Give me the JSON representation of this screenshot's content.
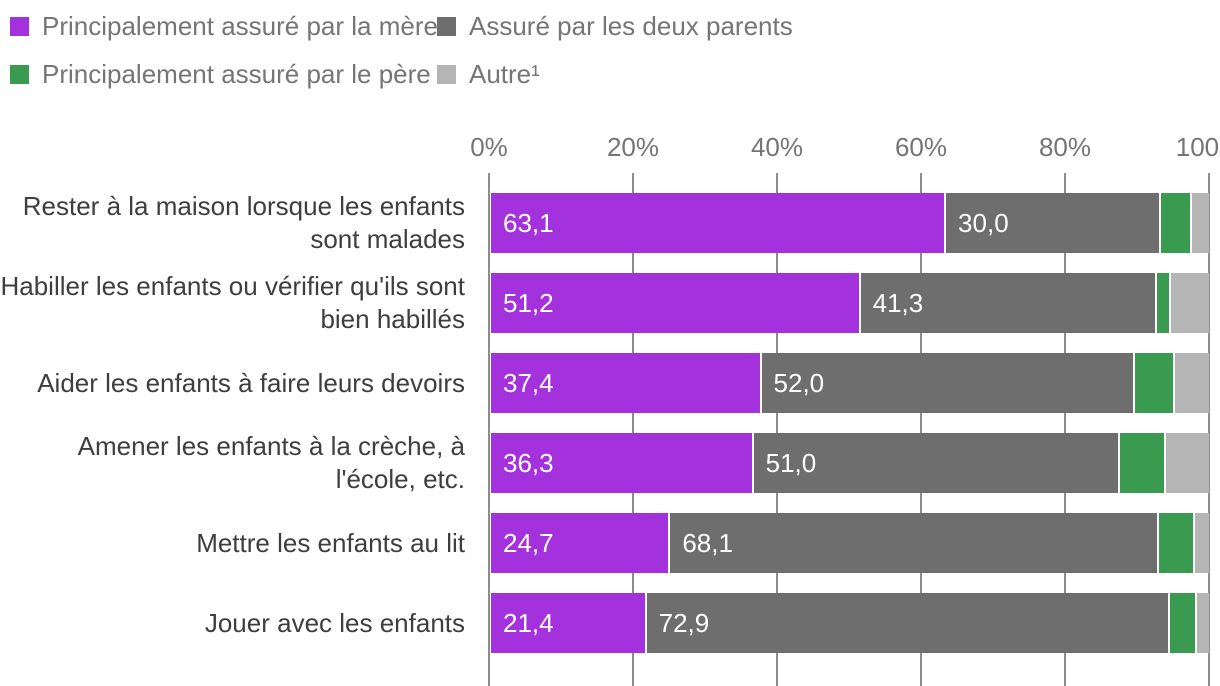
{
  "legend": {
    "items": [
      {
        "label": "Principalement assuré par la mère",
        "color": "#a332dc"
      },
      {
        "label": "Assuré par les deux parents",
        "color": "#6e6e6e"
      },
      {
        "label": "Principalement assuré par le père",
        "color": "#3a9b50"
      },
      {
        "label": "Autre¹",
        "color": "#b5b5b5"
      }
    ]
  },
  "axis": {
    "ticks": [
      "0%",
      "20%",
      "40%",
      "60%",
      "80%",
      "100%"
    ]
  },
  "rows": [
    {
      "label": "Rester à la maison lorsque les enfants sont malades",
      "value_labels": [
        "63,1",
        "30,0"
      ]
    },
    {
      "label": "Habiller les enfants ou vérifier qu'ils sont bien habillés",
      "value_labels": [
        "51,2",
        "41,3"
      ]
    },
    {
      "label": "Aider les enfants à faire leurs devoirs",
      "value_labels": [
        "37,4",
        "52,0"
      ]
    },
    {
      "label": "Amener les enfants à la crèche, à l'école, etc.",
      "value_labels": [
        "36,3",
        "51,0"
      ]
    },
    {
      "label": "Mettre les enfants au lit",
      "value_labels": [
        "24,7",
        "68,1"
      ]
    },
    {
      "label": "Jouer avec les enfants",
      "value_labels": [
        "21,4",
        "72,9"
      ]
    }
  ],
  "chart_data": {
    "type": "bar",
    "stacked": true,
    "orientation": "horizontal",
    "title": "",
    "xlabel": "",
    "ylabel": "",
    "xlim": [
      0,
      100
    ],
    "x_ticks": [
      "0%",
      "20%",
      "40%",
      "60%",
      "80%",
      "100%"
    ],
    "grid": true,
    "legend_position": "top-left",
    "categories": [
      "Rester à la maison lorsque les enfants sont malades",
      "Habiller les enfants ou vérifier qu'ils sont bien habillés",
      "Aider les enfants à faire leurs devoirs",
      "Amener les enfants à la crèche, à l'école, etc.",
      "Mettre les enfants au lit",
      "Jouer avec les enfants"
    ],
    "series": [
      {
        "name": "Principalement assuré par la mère",
        "color": "#a332dc",
        "labeled": true,
        "values": [
          63.1,
          51.2,
          37.4,
          36.3,
          24.7,
          21.4
        ]
      },
      {
        "name": "Assuré par les deux parents",
        "color": "#6e6e6e",
        "labeled": true,
        "values": [
          30.0,
          41.3,
          52.0,
          51.0,
          68.1,
          72.9
        ]
      },
      {
        "name": "Principalement assuré par le père",
        "color": "#3a9b50",
        "labeled": false,
        "estimated_from_pixels": true,
        "values": [
          4.3,
          1.9,
          5.6,
          6.4,
          5.0,
          3.7
        ]
      },
      {
        "name": "Autre¹",
        "color": "#b5b5b5",
        "labeled": false,
        "estimated_from_pixels": true,
        "values": [
          2.6,
          5.6,
          5.0,
          6.3,
          2.2,
          2.0
        ]
      }
    ],
    "colors": {
      "gridline": "#8d8d8d",
      "axis_text": "#757575",
      "category_text": "#3e3e3e",
      "value_label_text": "#ffffff"
    }
  }
}
